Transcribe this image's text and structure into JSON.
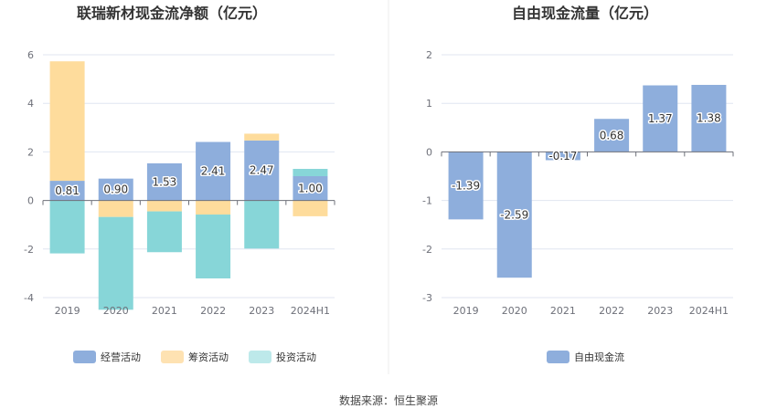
{
  "source_text": "数据来源：恒生聚源",
  "chart_data": [
    {
      "type": "bar",
      "stacked": true,
      "title": "联瑞新材现金流净额（亿元）",
      "categories": [
        "2019",
        "2020",
        "2021",
        "2022",
        "2023",
        "2024H1"
      ],
      "ylim": [
        -4,
        6
      ],
      "yticks": [
        -4,
        -2,
        0,
        2,
        4,
        6
      ],
      "series": [
        {
          "name": "经营活动",
          "color": "#8eaedc",
          "values": [
            0.81,
            0.9,
            1.53,
            2.41,
            2.47,
            1.0
          ],
          "labels": [
            "0.81",
            "0.90",
            "1.53",
            "2.41",
            "2.47",
            "1.00"
          ]
        },
        {
          "name": "筹资活动",
          "color": "#fedc9c",
          "values": [
            4.92,
            -0.68,
            -0.45,
            -0.58,
            0.28,
            -0.65
          ]
        },
        {
          "name": "投资活动",
          "color": "#87d6d8",
          "values": [
            -2.18,
            -3.82,
            -1.68,
            -2.63,
            -1.98,
            0.3
          ]
        }
      ],
      "legend": [
        {
          "name": "经营活动",
          "color": "#8eaedc"
        },
        {
          "name": "筹资活动",
          "color": "#fee2b2"
        },
        {
          "name": "投资活动",
          "color": "#bde9ea"
        }
      ]
    },
    {
      "type": "bar",
      "title": "自由现金流量（亿元）",
      "categories": [
        "2019",
        "2020",
        "2021",
        "2022",
        "2023",
        "2024H1"
      ],
      "ylim": [
        -3,
        2
      ],
      "yticks": [
        -3,
        -2,
        -1,
        0,
        1,
        2
      ],
      "series": [
        {
          "name": "自由现金流",
          "color": "#8eaedc",
          "values": [
            -1.39,
            -2.59,
            -0.17,
            0.68,
            1.37,
            1.38
          ],
          "labels": [
            "-1.39",
            "-2.59",
            "-0.17",
            "0.68",
            "1.37",
            "1.38"
          ]
        }
      ],
      "legend": [
        {
          "name": "自由现金流",
          "color": "#8eaedc"
        }
      ]
    }
  ]
}
